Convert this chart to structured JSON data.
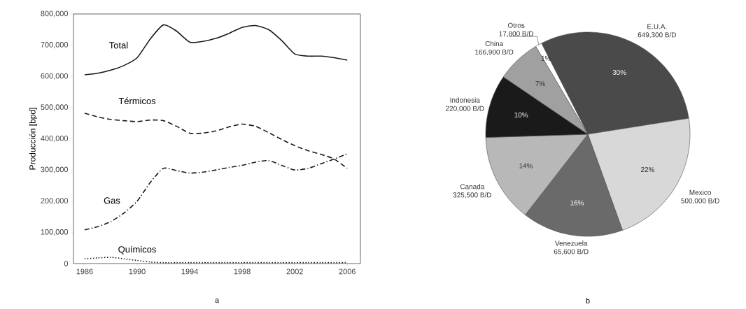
{
  "chart_data": [
    {
      "type": "line",
      "ylabel": "Producción [bpd]",
      "x": [
        1986,
        1987,
        1988,
        1989,
        1990,
        1991,
        1992,
        1993,
        1994,
        1995,
        1996,
        1997,
        1998,
        1999,
        2000,
        2001,
        2002,
        2003,
        2004,
        2005,
        2006
      ],
      "series": [
        {
          "name": "Total",
          "color": "#1a1a1a",
          "line_style": "solid",
          "values": [
            605000,
            610000,
            620000,
            635000,
            660000,
            720000,
            765000,
            745000,
            710000,
            712000,
            722000,
            738000,
            757000,
            763000,
            750000,
            715000,
            672000,
            665000,
            665000,
            660000,
            652000
          ]
        },
        {
          "name": "Térmicos",
          "color": "#1a1a1a",
          "line_style": "dashed",
          "values": [
            482000,
            470000,
            462000,
            458000,
            455000,
            460000,
            458000,
            440000,
            418000,
            418000,
            425000,
            438000,
            447000,
            440000,
            420000,
            398000,
            378000,
            362000,
            350000,
            335000,
            305000
          ]
        },
        {
          "name": "Gas",
          "color": "#1a1a1a",
          "line_style": "dashdot",
          "values": [
            108000,
            118000,
            135000,
            162000,
            200000,
            260000,
            305000,
            298000,
            290000,
            293000,
            300000,
            308000,
            315000,
            325000,
            330000,
            315000,
            300000,
            305000,
            320000,
            335000,
            352000
          ]
        },
        {
          "name": "Químicos",
          "color": "#1a1a1a",
          "line_style": "dotted",
          "values": [
            15000,
            18000,
            20000,
            15000,
            10000,
            5000,
            3000,
            3000,
            3000,
            3000,
            3000,
            3000,
            3000,
            3000,
            3000,
            3000,
            3000,
            3000,
            3000,
            3000,
            3000
          ]
        }
      ],
      "xlim": [
        1985.15,
        2007
      ],
      "ylim": [
        0,
        800000
      ],
      "xticks": [
        1986,
        1990,
        1994,
        1998,
        2002,
        2006
      ],
      "yticks": [
        0,
        {
          "value": 100000,
          "label": "100,000"
        },
        {
          "value": 200000,
          "label": "200,000"
        },
        {
          "value": 300000,
          "label": "300,000"
        },
        {
          "value": 400000,
          "label": "400,000"
        },
        {
          "value": 500000,
          "label": "500,000"
        },
        {
          "value": 600000,
          "label": "600,000"
        },
        {
          "value": 700000,
          "label": "700,000"
        },
        {
          "value": 800000,
          "label": "800,000"
        }
      ],
      "grid": false,
      "marker": "none",
      "annotations": [
        "a"
      ]
    },
    {
      "type": "pie",
      "categories": [
        "E.U.A.",
        "Mexico",
        "Venezuela",
        "Canada",
        "Indonesia",
        "China",
        "Otros"
      ],
      "values": [
        30,
        22,
        16,
        14,
        10,
        7,
        1
      ],
      "colors": [
        "#4a4a4a",
        "#d8d8d8",
        "#6a6a6a",
        "#b8b8b8",
        "#1a1a1a",
        "#a0a0a0",
        "#ffffff"
      ],
      "value_labels": [
        "30%",
        "22%",
        "16%",
        "14%",
        "10%",
        "7%",
        "1%"
      ],
      "annotations": [
        "649,300 B/D",
        "500,000 B/D",
        "65,600 B/D",
        "325,500 B/D",
        "220,000 B/D",
        "166,900 B/D",
        "17,800 B/D",
        "b"
      ]
    }
  ]
}
